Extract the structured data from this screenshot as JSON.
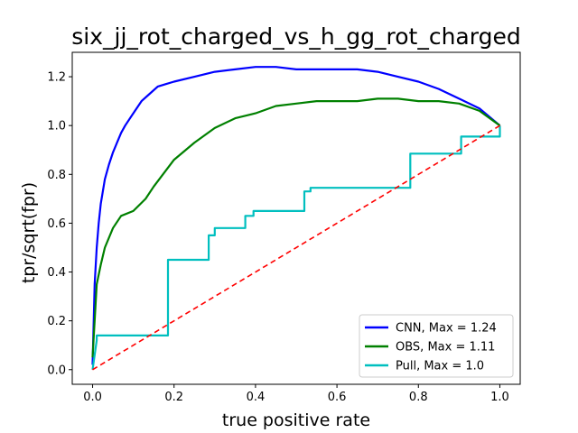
{
  "chart_data": {
    "type": "line",
    "title": "six_jj_rot_charged_vs_h_gg_rot_charged",
    "xlabel": "true positive rate",
    "ylabel": "tpr/sqrt(fpr)",
    "xlim": [
      -0.05,
      1.05
    ],
    "ylim": [
      -0.06,
      1.3
    ],
    "xticks": [
      0.0,
      0.2,
      0.4,
      0.6,
      0.8,
      1.0
    ],
    "xtick_labels": [
      "0.0",
      "0.2",
      "0.4",
      "0.6",
      "0.8",
      "1.0"
    ],
    "yticks": [
      0.0,
      0.2,
      0.4,
      0.6,
      0.8,
      1.0,
      1.2
    ],
    "ytick_labels": [
      "0.0",
      "0.2",
      "0.4",
      "0.6",
      "0.8",
      "1.0",
      "1.2"
    ],
    "grid": false,
    "legend_position": "lower-right",
    "series": [
      {
        "name": "CNN, Max = 1.24",
        "color": "#0000ff",
        "style": "solid",
        "x": [
          0.0,
          0.005,
          0.01,
          0.015,
          0.02,
          0.03,
          0.04,
          0.05,
          0.06,
          0.07,
          0.08,
          0.1,
          0.12,
          0.14,
          0.16,
          0.18,
          0.2,
          0.25,
          0.3,
          0.35,
          0.4,
          0.45,
          0.5,
          0.55,
          0.6,
          0.65,
          0.7,
          0.75,
          0.8,
          0.85,
          0.9,
          0.95,
          1.0
        ],
        "y": [
          0.02,
          0.35,
          0.5,
          0.6,
          0.68,
          0.78,
          0.84,
          0.89,
          0.93,
          0.97,
          1.0,
          1.05,
          1.1,
          1.13,
          1.16,
          1.17,
          1.18,
          1.2,
          1.22,
          1.23,
          1.24,
          1.24,
          1.23,
          1.23,
          1.23,
          1.23,
          1.22,
          1.2,
          1.18,
          1.15,
          1.11,
          1.07,
          1.0
        ]
      },
      {
        "name": "OBS, Max = 1.11",
        "color": "#008000",
        "style": "solid",
        "x": [
          0.0,
          0.01,
          0.02,
          0.03,
          0.05,
          0.07,
          0.1,
          0.13,
          0.15,
          0.2,
          0.25,
          0.3,
          0.35,
          0.4,
          0.45,
          0.5,
          0.55,
          0.6,
          0.65,
          0.7,
          0.75,
          0.8,
          0.85,
          0.9,
          0.95,
          1.0
        ],
        "y": [
          0.05,
          0.35,
          0.43,
          0.5,
          0.58,
          0.63,
          0.65,
          0.7,
          0.75,
          0.86,
          0.93,
          0.99,
          1.03,
          1.05,
          1.08,
          1.09,
          1.1,
          1.1,
          1.1,
          1.11,
          1.11,
          1.1,
          1.1,
          1.09,
          1.06,
          1.0
        ]
      },
      {
        "name": "Pull, Max = 1.0",
        "color": "#00bfbf",
        "style": "step",
        "x": [
          0.0,
          0.01,
          0.01,
          0.185,
          0.185,
          0.285,
          0.285,
          0.3,
          0.3,
          0.375,
          0.375,
          0.395,
          0.395,
          0.52,
          0.52,
          0.535,
          0.535,
          0.78,
          0.78,
          0.905,
          0.905,
          1.0,
          1.0
        ],
        "y": [
          0.0,
          0.12,
          0.14,
          0.14,
          0.45,
          0.45,
          0.55,
          0.55,
          0.58,
          0.58,
          0.63,
          0.63,
          0.65,
          0.65,
          0.73,
          0.73,
          0.745,
          0.745,
          0.885,
          0.885,
          0.955,
          0.955,
          1.0
        ]
      },
      {
        "name": "",
        "color": "#ff0000",
        "style": "dashed",
        "x": [
          0.0,
          1.0
        ],
        "y": [
          0.0,
          1.0
        ]
      }
    ]
  }
}
